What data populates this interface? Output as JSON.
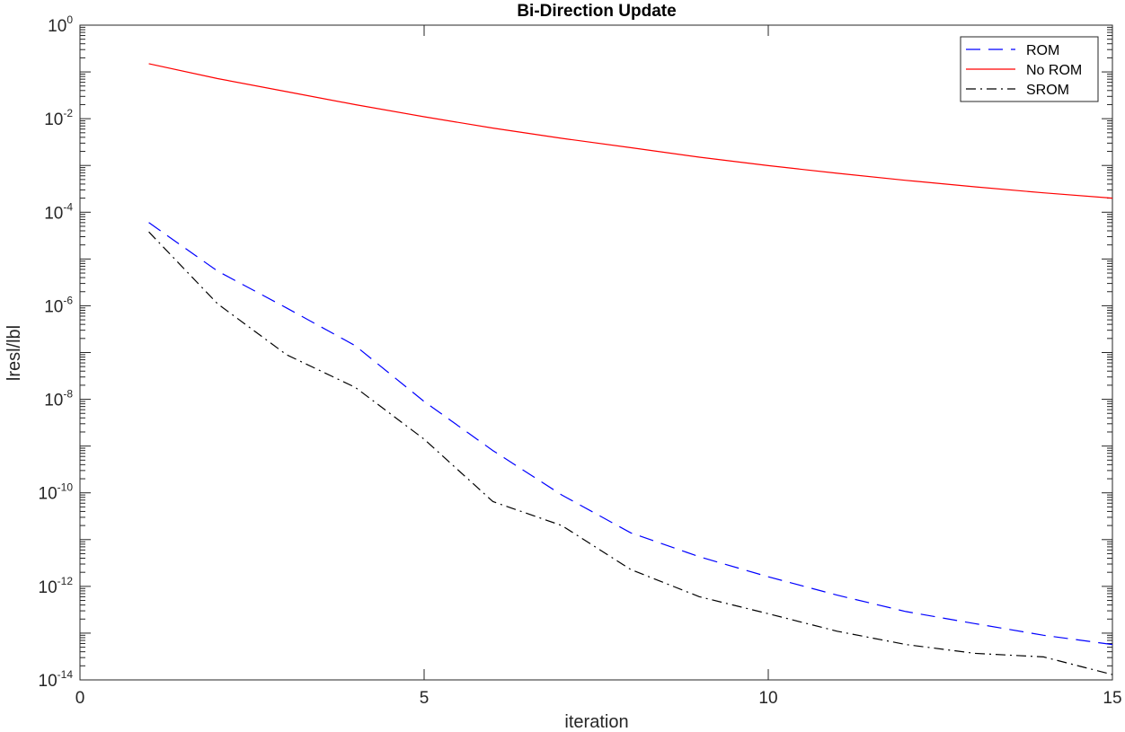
{
  "chart_data": {
    "type": "line",
    "title": "Bi-Direction Update",
    "xlabel": "iteration",
    "ylabel": "lresl/lbl",
    "xlim": [
      0,
      15
    ],
    "ylim": [
      1e-14,
      1
    ],
    "yscale": "log",
    "grid": false,
    "legend_position": "top-right",
    "x_ticks": [
      0,
      5,
      10,
      15
    ],
    "y_ticks": [
      {
        "base": "10",
        "exp": "0"
      },
      {
        "base": "10",
        "exp": "-2"
      },
      {
        "base": "10",
        "exp": "-4"
      },
      {
        "base": "10",
        "exp": "-6"
      },
      {
        "base": "10",
        "exp": "-8"
      },
      {
        "base": "10",
        "exp": "-10"
      },
      {
        "base": "10",
        "exp": "-12"
      },
      {
        "base": "10",
        "exp": "-14"
      }
    ],
    "x": [
      1,
      2,
      3,
      4,
      5,
      6,
      7,
      8,
      9,
      10,
      11,
      12,
      13,
      14,
      15
    ],
    "series": [
      {
        "name": "ROM",
        "color": "#0000ff",
        "style": "dashed",
        "values": [
          6e-05,
          5.5e-06,
          9e-07,
          1.4e-07,
          9e-09,
          8e-10,
          9e-11,
          1.4e-11,
          4.3e-12,
          1.6e-12,
          6.5e-13,
          2.9e-13,
          1.6e-13,
          9e-14,
          5.7e-14
        ]
      },
      {
        "name": "No ROM",
        "color": "#ff0000",
        "style": "solid",
        "values": [
          0.15,
          0.072,
          0.038,
          0.02,
          0.011,
          0.0063,
          0.0038,
          0.0024,
          0.0015,
          0.00099,
          0.00068,
          0.00048,
          0.00035,
          0.00026,
          0.0002
        ]
      },
      {
        "name": "SROM",
        "color": "#000000",
        "style": "dashdot",
        "values": [
          3.8e-05,
          1.1e-06,
          9e-08,
          1.8e-08,
          1.4e-09,
          6.5e-11,
          2e-11,
          2.3e-12,
          6e-13,
          2.6e-13,
          1.1e-13,
          5.7e-14,
          3.7e-14,
          3.1e-14,
          1.3e-14
        ]
      }
    ]
  }
}
